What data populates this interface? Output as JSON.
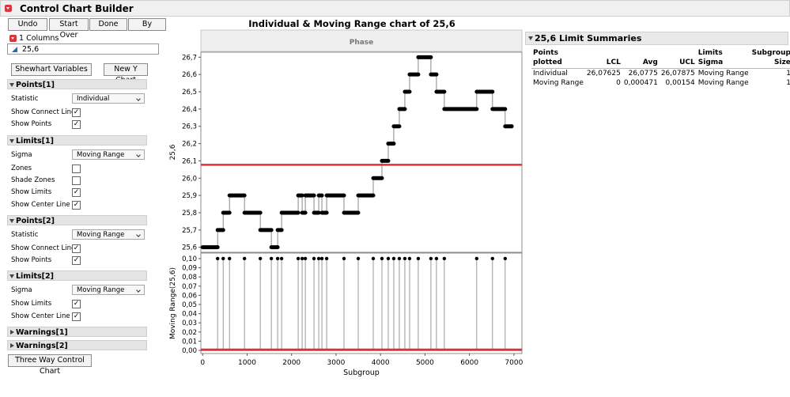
{
  "panel": {
    "title": "Control Chart Builder",
    "buttons": [
      "Undo",
      "Start Over",
      "Done",
      "By"
    ],
    "columns_header": "1 Columns",
    "column": "25,6",
    "shewhart": "Shewhart Variables",
    "new_y": "New Y Chart",
    "sections": [
      {
        "title": "Points[1]",
        "rows": [
          {
            "label": "Statistic",
            "select": "Individual"
          },
          {
            "label": "Show Connect Line",
            "checked": true
          },
          {
            "label": "Show Points",
            "checked": true
          }
        ]
      },
      {
        "title": "Limits[1]",
        "rows": [
          {
            "label": "Sigma",
            "select": "Moving Range"
          },
          {
            "label": "Zones",
            "checked": false
          },
          {
            "label": "Shade Zones",
            "checked": false
          },
          {
            "label": "Show Limits",
            "checked": true
          },
          {
            "label": "Show Center Line",
            "checked": true
          }
        ]
      },
      {
        "title": "Points[2]",
        "rows": [
          {
            "label": "Statistic",
            "select": "Moving Range"
          },
          {
            "label": "Show Connect Line",
            "checked": true
          },
          {
            "label": "Show Points",
            "checked": true
          }
        ]
      },
      {
        "title": "Limits[2]",
        "rows": [
          {
            "label": "Sigma",
            "select": "Moving Range"
          },
          {
            "label": "Show Limits",
            "checked": true
          },
          {
            "label": "Show Center Line",
            "checked": true
          }
        ]
      },
      {
        "title": "Warnings[1]",
        "collapsed": true
      },
      {
        "title": "Warnings[2]",
        "collapsed": true
      }
    ],
    "three_way": "Three Way Control Chart"
  },
  "phase": "Phase",
  "chart_data": [
    {
      "type": "line",
      "drawstyle": "steps-post",
      "title": "Individual & Moving Range chart of 25,6",
      "ylabel": "25,6",
      "color": "#000000",
      "limit_color": "#e0303a",
      "x": [
        0,
        337,
        462,
        604,
        941,
        1297,
        1545,
        1687,
        1776,
        2149,
        2238,
        2309,
        2504,
        2611,
        2682,
        2789,
        3179,
        3499,
        3837,
        4032,
        4174,
        4298,
        4423,
        4547,
        4654,
        4849,
        5133,
        5258,
        5435,
        6163,
        6518,
        6803,
        6950
      ],
      "values": [
        25.6,
        25.7,
        25.8,
        25.9,
        25.8,
        25.7,
        25.6,
        25.7,
        25.8,
        25.9,
        25.8,
        25.9,
        25.8,
        25.9,
        25.8,
        25.9,
        25.8,
        25.9,
        26.0,
        26.1,
        26.2,
        26.3,
        26.4,
        26.5,
        26.6,
        26.7,
        26.6,
        26.5,
        26.4,
        26.5,
        26.4,
        26.3,
        26.3
      ],
      "lcl": 26.07625,
      "center_line": 26.0775,
      "ucl": 26.07875,
      "xlim": [
        -40,
        7180
      ],
      "ylim": [
        25.571,
        26.729
      ],
      "yticks": [
        {
          "value": 25.6,
          "label": "25,6"
        },
        {
          "value": 25.7,
          "label": "25,7"
        },
        {
          "value": 25.8,
          "label": "25,8"
        },
        {
          "value": 25.9,
          "label": "25,9"
        },
        {
          "value": 26.0,
          "label": "26,0"
        },
        {
          "value": 26.1,
          "label": "26,1"
        },
        {
          "value": 26.2,
          "label": "26,2"
        },
        {
          "value": 26.3,
          "label": "26,3"
        },
        {
          "value": 26.4,
          "label": "26,4"
        },
        {
          "value": 26.5,
          "label": "26,5"
        },
        {
          "value": 26.6,
          "label": "26,6"
        },
        {
          "value": 26.7,
          "label": "26,7"
        }
      ]
    },
    {
      "type": "stem",
      "ylabel": "Moving Range(25,6)",
      "xlabel": "Subgroup",
      "color": "#000000",
      "limit_color": "#e0303a",
      "x": [
        337,
        462,
        604,
        941,
        1297,
        1545,
        1687,
        1776,
        2149,
        2238,
        2309,
        2504,
        2611,
        2682,
        2789,
        3179,
        3499,
        3837,
        4032,
        4174,
        4298,
        4423,
        4547,
        4654,
        4849,
        5133,
        5258,
        5435,
        6163,
        6518,
        6803
      ],
      "values": [
        0.1,
        0.1,
        0.1,
        0.1,
        0.1,
        0.1,
        0.1,
        0.1,
        0.1,
        0.1,
        0.1,
        0.1,
        0.1,
        0.1,
        0.1,
        0.1,
        0.1,
        0.1,
        0.1,
        0.1,
        0.1,
        0.1,
        0.1,
        0.1,
        0.1,
        0.1,
        0.1,
        0.1,
        0.1,
        0.1,
        0.1
      ],
      "lcl": 0,
      "center_line": 0.000471,
      "ucl": 0.00154,
      "xlim": [
        -40,
        7180
      ],
      "ylim": [
        -0.0034,
        0.106
      ],
      "xticks": [
        0,
        1000,
        2000,
        3000,
        4000,
        5000,
        6000,
        7000
      ],
      "yticks": [
        {
          "value": 0,
          "label": "0,00"
        },
        {
          "value": 0.01,
          "label": "0,01"
        },
        {
          "value": 0.02,
          "label": "0,02"
        },
        {
          "value": 0.03,
          "label": "0,03"
        },
        {
          "value": 0.04,
          "label": "0,04"
        },
        {
          "value": 0.05,
          "label": "0,05"
        },
        {
          "value": 0.06,
          "label": "0,06"
        },
        {
          "value": 0.07,
          "label": "0,07"
        },
        {
          "value": 0.08,
          "label": "0,08"
        },
        {
          "value": 0.09,
          "label": "0,09"
        },
        {
          "value": 0.1,
          "label": "0,10"
        }
      ]
    }
  ],
  "summary": {
    "title": "25,6 Limit Summaries",
    "columns": [
      "Points plotted",
      "LCL",
      "Avg",
      "UCL",
      "Limits Sigma",
      "Subgroup Size"
    ],
    "rows": [
      [
        "Individual",
        "26,07625",
        "26,0775",
        "26,07875",
        "Moving Range",
        "1"
      ],
      [
        "Moving Range",
        "0",
        "0,000471",
        "0,00154",
        "Moving Range",
        "1"
      ]
    ]
  }
}
